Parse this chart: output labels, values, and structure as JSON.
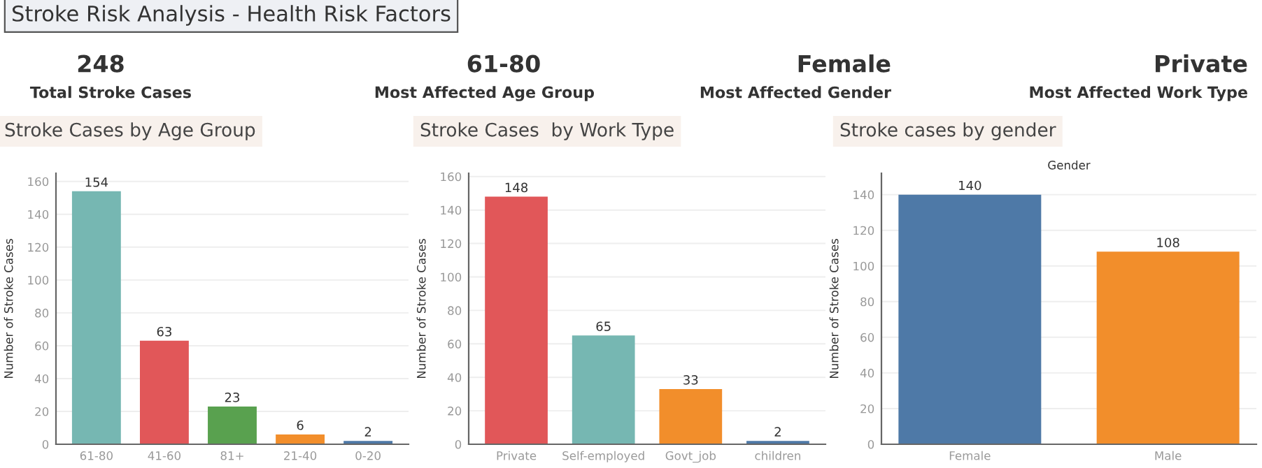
{
  "chart_data": [
    {
      "type": "other",
      "title": "Stroke Risk Analysis - Health Risk Factors",
      "annotations": [
        "248",
        "Total Stroke Cases",
        "61-80",
        "Most Affected Age Group",
        "Female",
        "Most Affected Gender",
        "Private",
        "Most Affected Work Type"
      ]
    },
    {
      "type": "bar",
      "title": "Stroke Cases by Age Group",
      "ylabel": "Number of Stroke Cases",
      "categories": [
        "61-80",
        "41-60",
        "81+",
        "21-40",
        "0-20"
      ],
      "values": [
        154,
        63,
        23,
        6,
        2
      ],
      "colors": [
        "#76b7b2",
        "#e15759",
        "#59a14f",
        "#f28e2b",
        "#4e79a7"
      ],
      "ylim": [
        0,
        165
      ],
      "yticks": [
        0,
        20,
        40,
        60,
        80,
        100,
        120,
        140,
        160
      ],
      "grid": "y",
      "data_labels": true
    },
    {
      "type": "bar",
      "title": "Stroke Cases  by Work Type",
      "ylabel": "Number of Stroke Cases",
      "categories": [
        "Private",
        "Self-employed",
        "Govt_job",
        "children"
      ],
      "values": [
        148,
        65,
        33,
        2
      ],
      "colors": [
        "#e15759",
        "#76b7b2",
        "#f28e2b",
        "#4e79a7"
      ],
      "ylim": [
        0,
        162
      ],
      "yticks": [
        0,
        20,
        40,
        60,
        80,
        100,
        120,
        140,
        160
      ],
      "grid": "y",
      "data_labels": true
    },
    {
      "type": "bar",
      "title": "Stroke cases by gender",
      "xlabel": "Gender",
      "ylabel": "Number of Stroke Cases",
      "categories": [
        "Female",
        "Male"
      ],
      "values": [
        140,
        108
      ],
      "colors": [
        "#4e79a7",
        "#f28e2b"
      ],
      "ylim": [
        0,
        152
      ],
      "yticks": [
        0,
        20,
        40,
        60,
        80,
        100,
        120,
        140
      ],
      "grid": "y",
      "data_labels": true
    }
  ]
}
